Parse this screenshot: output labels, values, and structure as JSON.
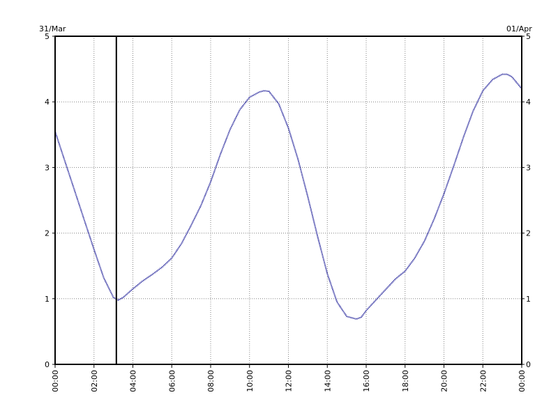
{
  "chart_data": {
    "type": "line",
    "date_start": "31/Mar",
    "date_end": "01/Apr",
    "x_ticks": [
      "00:00",
      "02:00",
      "04:00",
      "06:00",
      "08:00",
      "10:00",
      "12:00",
      "14:00",
      "16:00",
      "18:00",
      "20:00",
      "22:00",
      "00:00"
    ],
    "y_ticks": [
      "0",
      "1",
      "2",
      "3",
      "4",
      "5"
    ],
    "ylim": [
      0,
      5
    ],
    "xlim": [
      0,
      24
    ],
    "grid": true,
    "grid_style": "dotted",
    "marker_time": 3.15,
    "colors": {
      "series": "#00008b",
      "axis": "#000000",
      "grid": "#808080"
    },
    "series": [
      {
        "x": [
          0,
          0.5,
          1,
          1.5,
          2,
          2.5,
          3,
          3.25,
          3.5,
          4,
          4.5,
          5,
          5.5,
          6,
          6.5,
          7,
          7.5,
          8,
          8.5,
          9,
          9.5,
          10,
          10.5,
          10.75,
          11,
          11.5,
          12,
          12.5,
          13,
          13.5,
          14,
          14.5,
          15,
          15.5,
          15.75,
          16,
          16.5,
          17,
          17.5,
          18,
          18.5,
          19,
          19.5,
          20,
          20.5,
          21,
          21.5,
          22,
          22.5,
          23,
          23.25,
          23.5,
          24
        ],
        "values": [
          3.55,
          3.1,
          2.65,
          2.2,
          1.75,
          1.32,
          1.02,
          0.98,
          1.02,
          1.15,
          1.27,
          1.37,
          1.48,
          1.62,
          1.84,
          2.12,
          2.42,
          2.78,
          3.2,
          3.58,
          3.88,
          4.07,
          4.15,
          4.17,
          4.16,
          3.97,
          3.6,
          3.12,
          2.55,
          1.95,
          1.38,
          0.95,
          0.73,
          0.69,
          0.72,
          0.82,
          0.98,
          1.14,
          1.3,
          1.42,
          1.62,
          1.88,
          2.22,
          2.6,
          3.02,
          3.46,
          3.86,
          4.17,
          4.34,
          4.42,
          4.42,
          4.38,
          4.2
        ]
      }
    ]
  }
}
